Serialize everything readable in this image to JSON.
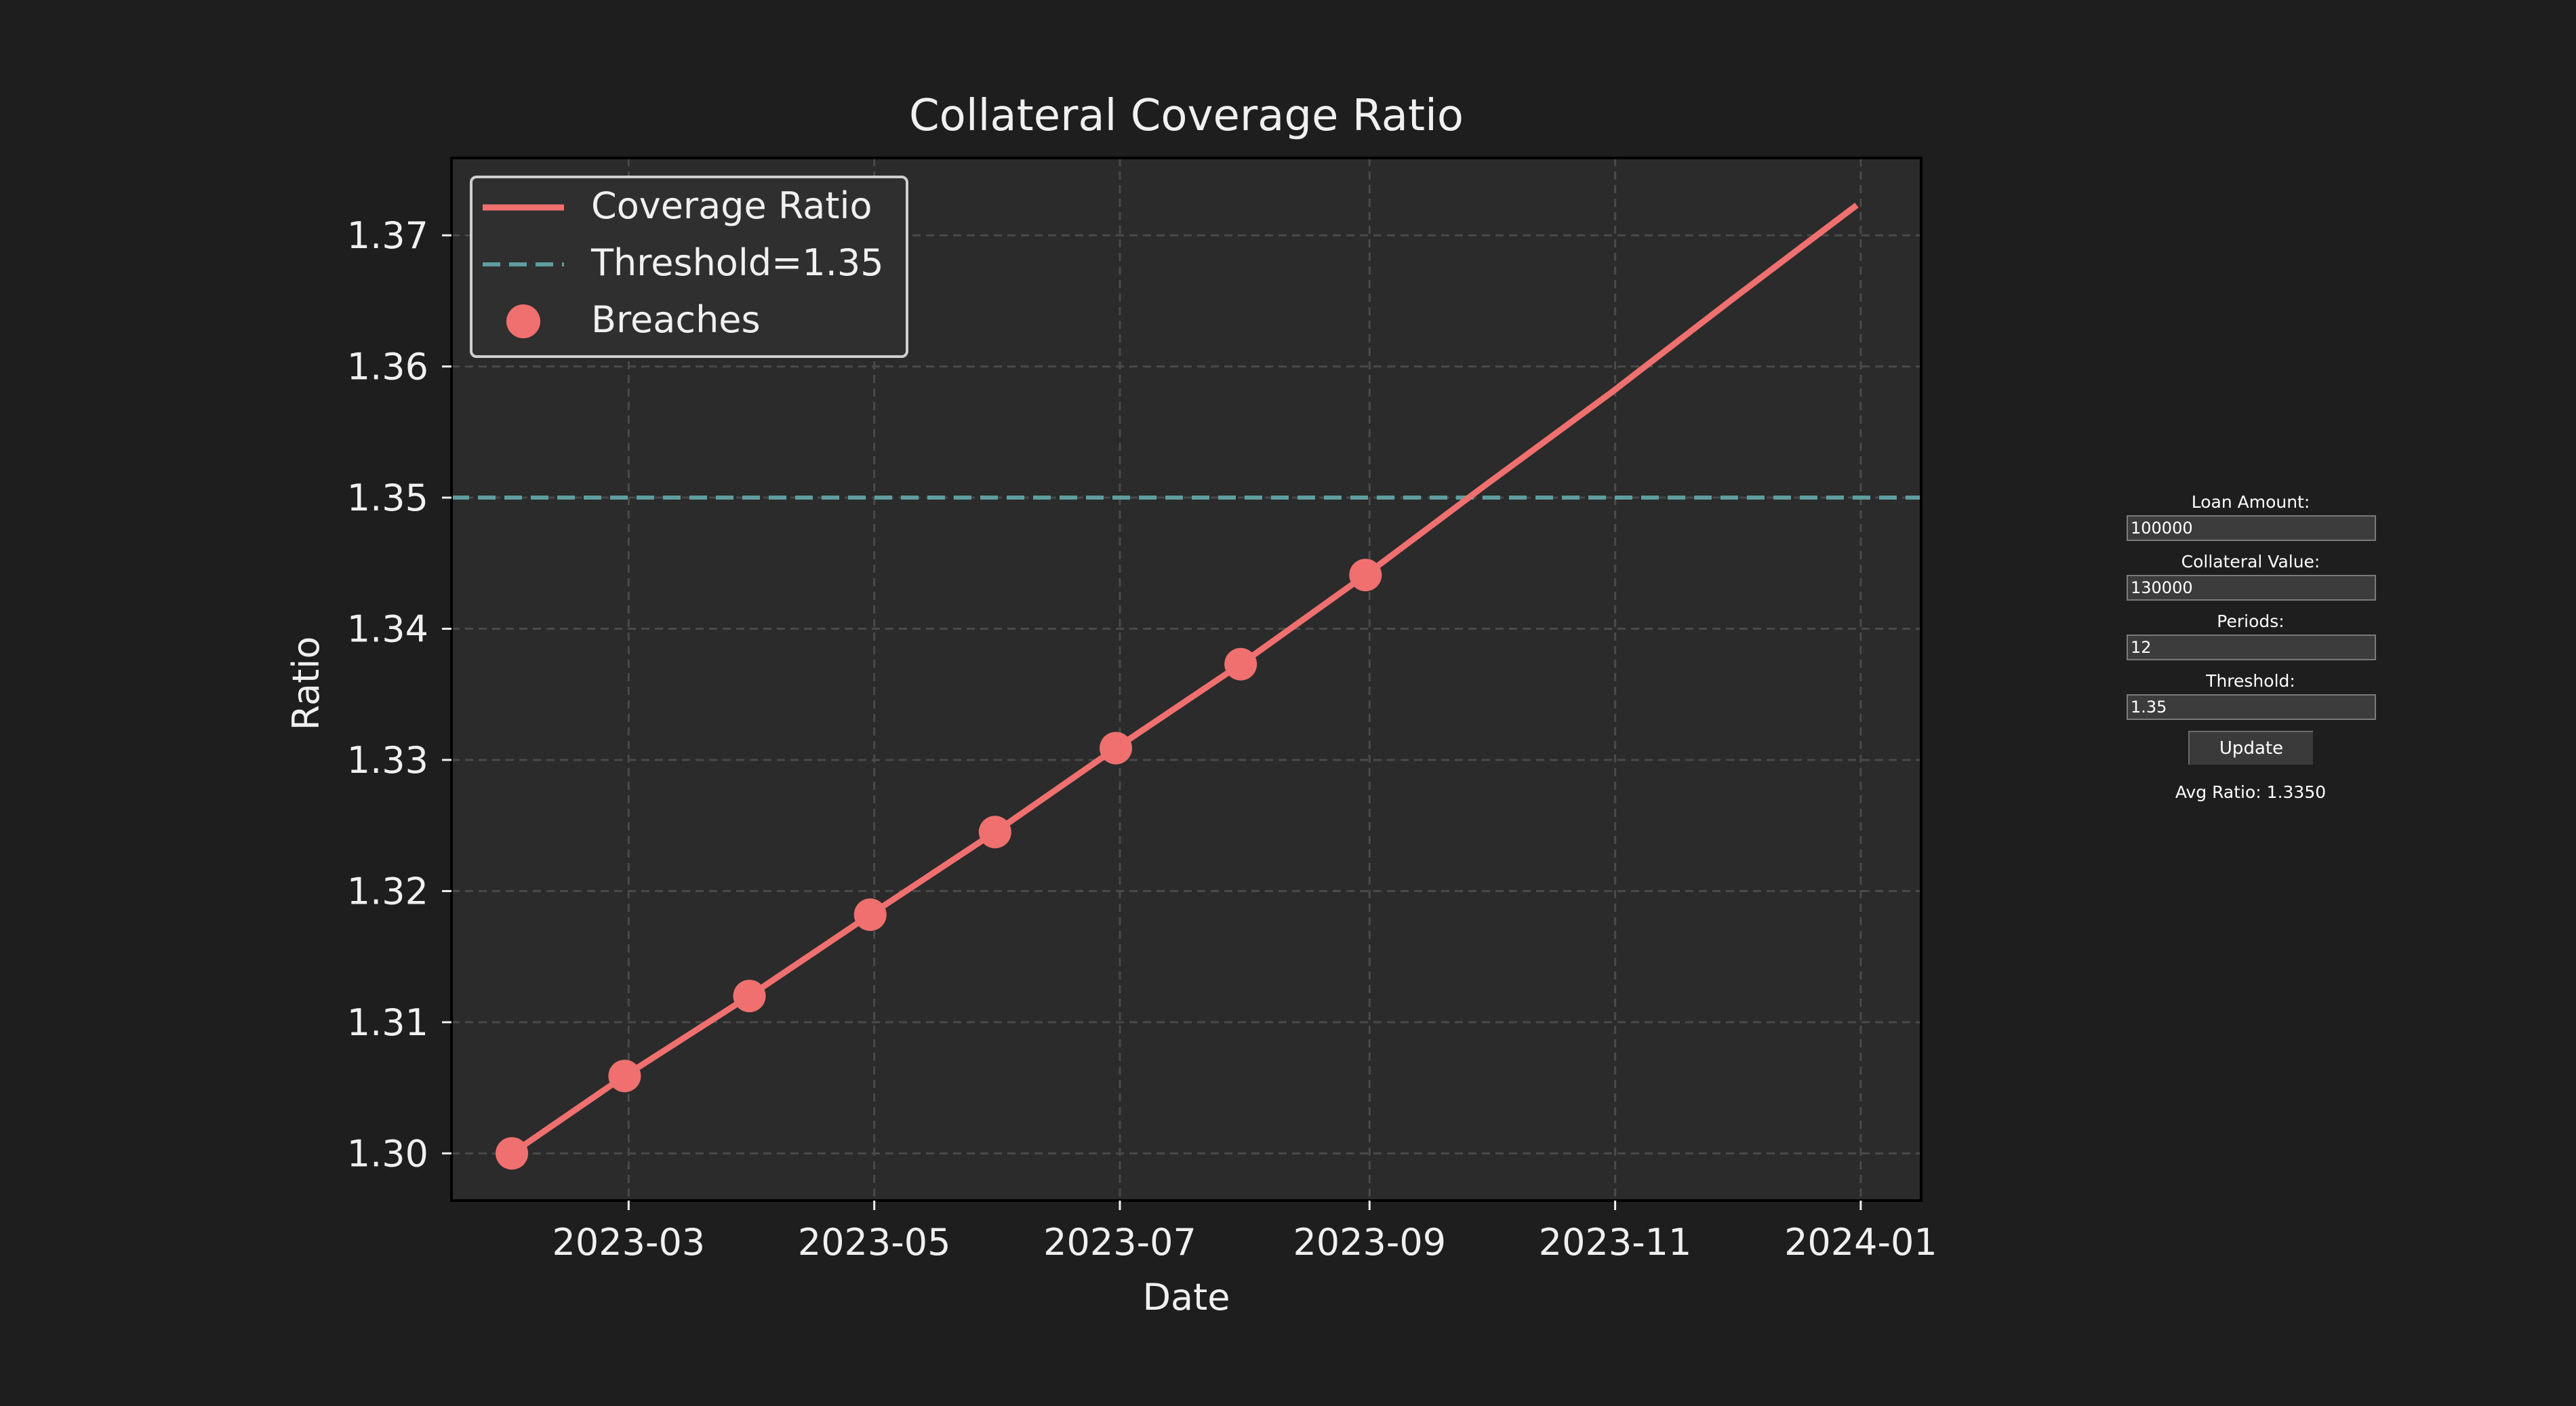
{
  "chart_data": {
    "type": "line",
    "title": "Collateral Coverage Ratio",
    "xlabel": "Date",
    "ylabel": "Ratio",
    "x": [
      "2023-01-31",
      "2023-02-28",
      "2023-03-31",
      "2023-04-30",
      "2023-05-31",
      "2023-06-30",
      "2023-07-31",
      "2023-08-31",
      "2023-09-30",
      "2023-10-31",
      "2023-11-30",
      "2023-12-31"
    ],
    "series": [
      {
        "name": "Coverage Ratio",
        "values": [
          1.3,
          1.3059,
          1.312,
          1.3182,
          1.3245,
          1.3309,
          1.3373,
          1.3441,
          1.351,
          1.358,
          1.3651,
          1.3723
        ],
        "color": "#f07070"
      }
    ],
    "threshold": {
      "name": "Threshold=1.35",
      "value": 1.35,
      "color": "#5f9ea0"
    },
    "breaches": {
      "name": "Breaches",
      "x": [
        "2023-01-31",
        "2023-02-28",
        "2023-03-31",
        "2023-04-30",
        "2023-05-31",
        "2023-06-30",
        "2023-07-31",
        "2023-08-31"
      ],
      "values": [
        1.3,
        1.3059,
        1.312,
        1.3182,
        1.3245,
        1.3309,
        1.3373,
        1.3441
      ],
      "color": "#f07070"
    },
    "xticks": [
      "2023-03",
      "2023-05",
      "2023-07",
      "2023-09",
      "2023-11",
      "2024-01"
    ],
    "xlim": [
      "2023-01-16",
      "2024-01-16"
    ],
    "yticks": [
      "1.30",
      "1.31",
      "1.32",
      "1.33",
      "1.34",
      "1.35",
      "1.36",
      "1.37"
    ],
    "ylim": [
      1.2964,
      1.3759
    ],
    "grid": true,
    "legend_position": "top-left"
  },
  "controls": {
    "loan_amount_label": "Loan Amount:",
    "loan_amount_value": "100000",
    "collateral_value_label": "Collateral Value:",
    "collateral_value_value": "130000",
    "periods_label": "Periods:",
    "periods_value": "12",
    "threshold_label": "Threshold:",
    "threshold_value": "1.35",
    "update_label": "Update",
    "avg_ratio_text": "Avg Ratio: 1.3350"
  }
}
